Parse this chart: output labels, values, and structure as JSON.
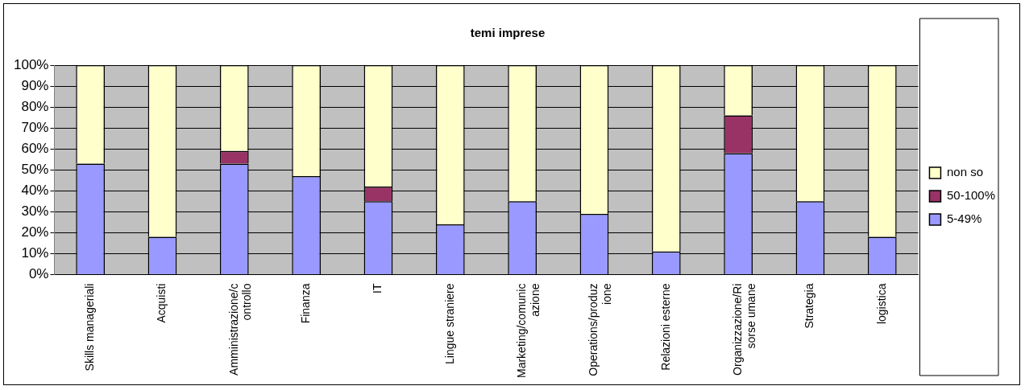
{
  "chart_data": {
    "type": "bar",
    "title": "temi imprese",
    "stacked": true,
    "categories": [
      "Skills manageriali",
      "Acquisti",
      "Amministrazione/controllo",
      "Finanza",
      "IT",
      "Lingue straniere",
      "Marketing/comunicazione",
      "Operations/produzione",
      "Relazioni esterne",
      "Organizzazione/Risorse umane",
      "Strategia",
      "logistica"
    ],
    "series": [
      {
        "name": "5-49%",
        "color": "#9999ff",
        "values": [
          53,
          18,
          53,
          47,
          35,
          24,
          35,
          29,
          11,
          58,
          35,
          18
        ]
      },
      {
        "name": "50-100%",
        "color": "#993366",
        "values": [
          0,
          0,
          6,
          0,
          7,
          0,
          0,
          0,
          0,
          18,
          0,
          0
        ]
      },
      {
        "name": "non so",
        "color": "#ffffcc",
        "values": [
          47,
          82,
          41,
          53,
          58,
          76,
          65,
          71,
          89,
          24,
          65,
          82
        ]
      }
    ],
    "ylim": [
      0,
      100
    ],
    "yticks": [
      {
        "value": 0,
        "label": "0%"
      },
      {
        "value": 10,
        "label": "10%"
      },
      {
        "value": 20,
        "label": "20%"
      },
      {
        "value": 30,
        "label": "30%"
      },
      {
        "value": 40,
        "label": "40%"
      },
      {
        "value": 50,
        "label": "50%"
      },
      {
        "value": 60,
        "label": "60%"
      },
      {
        "value": 70,
        "label": "70%"
      },
      {
        "value": 80,
        "label": "80%"
      },
      {
        "value": 90,
        "label": "90%"
      },
      {
        "value": 100,
        "label": "100%"
      }
    ],
    "grid": "y",
    "legend": "right"
  }
}
